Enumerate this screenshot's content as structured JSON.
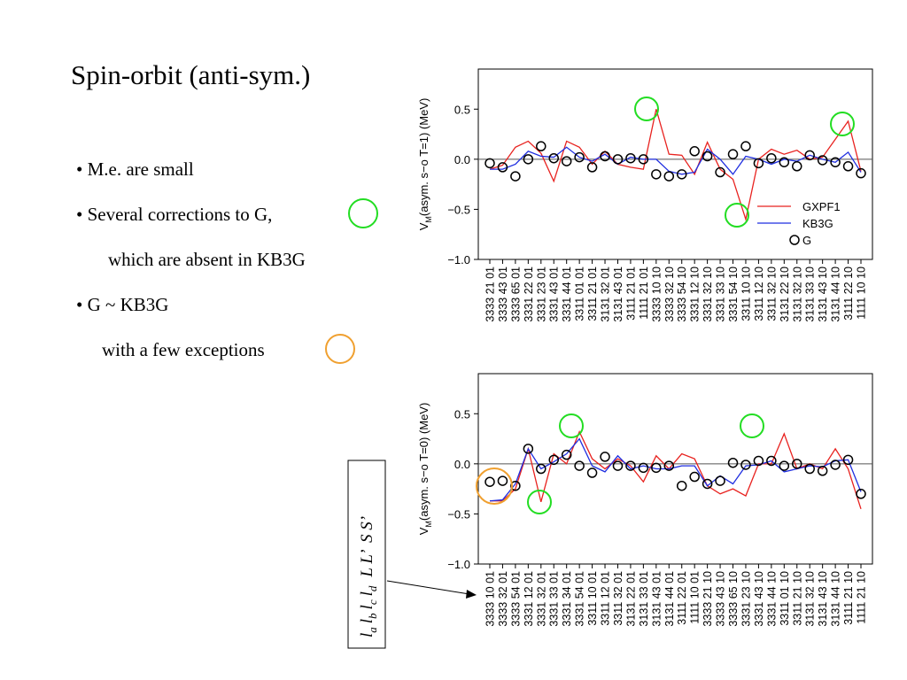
{
  "slide": {
    "title": "Spin-orbit (anti-sym.)",
    "bullets": [
      "• M.e. are small",
      "• Several corrections to G,",
      "which are absent in KB3G",
      "• G ~ KB3G",
      "with a few exceptions"
    ],
    "key": [
      "l",
      "a",
      "l",
      "b",
      "l",
      "c",
      "l",
      "d",
      "L L’  S S’"
    ]
  },
  "chart_data": [
    {
      "type": "line",
      "ylabel": [
        "V",
        "M",
        "(asym. s−o T=1)  (MeV)"
      ],
      "categories": [
        "3333 21 01",
        "3333 43 01",
        "3333 65 01",
        "3331 22 01",
        "3331 23 01",
        "3331 43 01",
        "3331 44 01",
        "3311 01 01",
        "3311 21 01",
        "3131 32 01",
        "3131 43 01",
        "3111 21 01",
        "1111 21 01",
        "3333 10 10",
        "3333 32 10",
        "3333 54 10",
        "3331 12 10",
        "3331 32 10",
        "3331 33 10",
        "3331 54 10",
        "3311 10 10",
        "3311 12 10",
        "3311 32 10",
        "3131 22 10",
        "3131 32 10",
        "3131 33 10",
        "3131 43 10",
        "3131 44 10",
        "3111 22 10",
        "1111 10 10"
      ],
      "series": [
        {
          "name": "GXPF1",
          "color": "#e8221f",
          "style": "line",
          "values": [
            -0.1,
            -0.06,
            0.12,
            0.18,
            0.06,
            -0.22,
            0.18,
            0.12,
            -0.05,
            0.08,
            -0.05,
            -0.08,
            -0.1,
            0.5,
            0.05,
            0.04,
            -0.15,
            0.17,
            -0.1,
            -0.2,
            -0.6,
            0.0,
            0.1,
            0.05,
            0.09,
            0.0,
            0.02,
            0.2,
            0.38,
            -0.12
          ]
        },
        {
          "name": "KB3G",
          "color": "#1f2ee0",
          "style": "line",
          "values": [
            -0.1,
            -0.1,
            -0.05,
            0.08,
            0.03,
            0.02,
            0.12,
            0.02,
            -0.02,
            0.05,
            -0.05,
            0.02,
            0.0,
            0.0,
            -0.12,
            -0.15,
            -0.13,
            0.1,
            0.0,
            -0.15,
            0.03,
            0.0,
            -0.05,
            0.0,
            -0.02,
            0.04,
            0.0,
            -0.03,
            0.07,
            -0.13
          ]
        },
        {
          "name": "G",
          "color": "#000000",
          "style": "markers",
          "values": [
            -0.04,
            -0.08,
            -0.17,
            0.0,
            0.13,
            0.01,
            -0.02,
            0.02,
            -0.08,
            0.03,
            0.0,
            0.01,
            0.0,
            -0.15,
            -0.17,
            -0.15,
            0.08,
            0.03,
            -0.13,
            0.05,
            0.13,
            -0.04,
            0.01,
            -0.03,
            -0.07,
            0.04,
            -0.01,
            -0.03,
            -0.07,
            -0.14
          ]
        }
      ],
      "ylim": [
        -1.0,
        0.9
      ],
      "yticks": [
        0.5,
        {
          "value": 0,
          "label": "0.0"
        },
        {
          "value": -0.5,
          "label": "−0.5"
        },
        {
          "value": -1,
          "label": "−1.0"
        }
      ],
      "legend": true,
      "zero_line": true
    },
    {
      "type": "line",
      "ylabel": [
        "V",
        "M",
        "(asym. s−o T=0)  (MeV)"
      ],
      "categories": [
        "3333 10 01",
        "3333 32 01",
        "3333 54 01",
        "3331 12 01",
        "3331 32 01",
        "3331 33 01",
        "3331 34 01",
        "3331 54 01",
        "3311 10 01",
        "3311 12 01",
        "3311 32 01",
        "3131 22 01",
        "3131 33 01",
        "3131 43 01",
        "3131 44 01",
        "3111 22 01",
        "1111 10 01",
        "3333 21 10",
        "3333 43 10",
        "3333 65 10",
        "3331 23 10",
        "3331 43 10",
        "3331 44 10",
        "3311 01 10",
        "3311 21 10",
        "3131 32 10",
        "3131 43 10",
        "3131 44 10",
        "3111 21 10",
        "1111 21 10"
      ],
      "series": [
        {
          "name": "GXPF1",
          "color": "#e8221f",
          "style": "line",
          "values": [
            -0.37,
            -0.37,
            -0.25,
            0.15,
            -0.38,
            0.1,
            0.0,
            0.32,
            0.05,
            -0.05,
            0.05,
            -0.02,
            -0.18,
            0.08,
            -0.05,
            0.1,
            0.05,
            -0.22,
            -0.3,
            -0.25,
            -0.32,
            0.0,
            0.0,
            0.3,
            -0.05,
            0.0,
            -0.05,
            0.15,
            -0.05,
            -0.45
          ]
        },
        {
          "name": "KB3G",
          "color": "#1f2ee0",
          "style": "line",
          "values": [
            -0.37,
            -0.36,
            -0.2,
            0.15,
            -0.05,
            0.02,
            0.1,
            0.25,
            -0.02,
            -0.08,
            0.08,
            -0.05,
            -0.02,
            -0.05,
            -0.05,
            -0.02,
            -0.02,
            -0.22,
            -0.12,
            -0.2,
            -0.02,
            -0.01,
            0.03,
            -0.08,
            -0.05,
            -0.02,
            -0.03,
            0.03,
            0.04,
            -0.28
          ]
        },
        {
          "name": "G",
          "color": "#000000",
          "style": "markers",
          "values": [
            -0.18,
            -0.17,
            -0.22,
            0.15,
            -0.05,
            0.04,
            0.09,
            -0.02,
            -0.09,
            0.07,
            -0.02,
            -0.02,
            -0.04,
            -0.04,
            -0.02,
            -0.22,
            -0.13,
            -0.2,
            -0.17,
            0.01,
            -0.01,
            0.03,
            0.03,
            -0.02,
            0.0,
            -0.05,
            -0.07,
            -0.01,
            0.04,
            -0.3
          ]
        }
      ],
      "ylim": [
        -1.0,
        0.9
      ],
      "yticks": [
        0.5,
        {
          "value": 0,
          "label": "0.0"
        },
        {
          "value": -0.5,
          "label": "−0.5"
        },
        {
          "value": -1,
          "label": "−1.0"
        }
      ],
      "legend": false,
      "zero_line": true
    }
  ]
}
